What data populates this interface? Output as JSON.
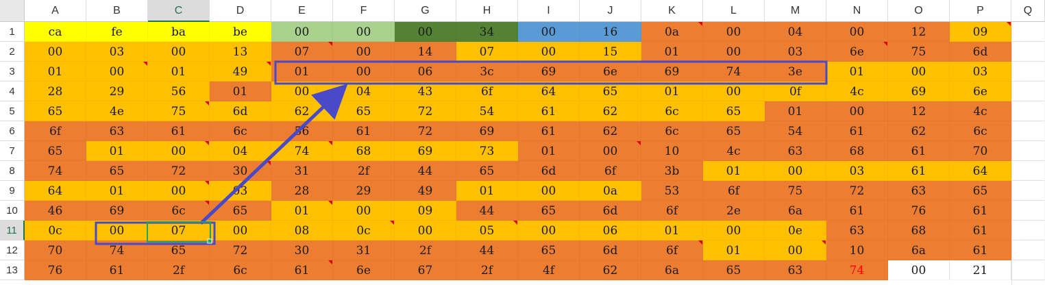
{
  "columns": [
    "A",
    "B",
    "C",
    "D",
    "E",
    "F",
    "G",
    "H",
    "I",
    "J",
    "K",
    "L",
    "M",
    "N",
    "O",
    "P",
    "Q"
  ],
  "rows": [
    "1",
    "2",
    "3",
    "4",
    "5",
    "6",
    "7",
    "8",
    "9",
    "10",
    "11",
    "12",
    "13"
  ],
  "active_column": "C",
  "active_row": "11",
  "cells": [
    [
      "ca",
      "fe",
      "ba",
      "be",
      "00",
      "00",
      "00",
      "34",
      "00",
      "16",
      "0a",
      "00",
      "04",
      "00",
      "12",
      "09"
    ],
    [
      "00",
      "03",
      "00",
      "13",
      "07",
      "00",
      "14",
      "07",
      "00",
      "15",
      "01",
      "00",
      "03",
      "6e",
      "75",
      "6d"
    ],
    [
      "01",
      "00",
      "01",
      "49",
      "01",
      "00",
      "06",
      "3c",
      "69",
      "6e",
      "69",
      "74",
      "3e",
      "01",
      "00",
      "03"
    ],
    [
      "28",
      "29",
      "56",
      "01",
      "00",
      "04",
      "43",
      "6f",
      "64",
      "65",
      "01",
      "00",
      "0f",
      "4c",
      "69",
      "6e"
    ],
    [
      "65",
      "4e",
      "75",
      "6d",
      "62",
      "65",
      "72",
      "54",
      "61",
      "62",
      "6c",
      "65",
      "01",
      "00",
      "12",
      "4c"
    ],
    [
      "6f",
      "63",
      "61",
      "6c",
      "56",
      "61",
      "72",
      "69",
      "61",
      "62",
      "6c",
      "65",
      "54",
      "61",
      "62",
      "6c"
    ],
    [
      "65",
      "01",
      "00",
      "04",
      "74",
      "68",
      "69",
      "73",
      "01",
      "00",
      "10",
      "4c",
      "63",
      "68",
      "61",
      "70"
    ],
    [
      "74",
      "65",
      "72",
      "30",
      "31",
      "2f",
      "44",
      "65",
      "6d",
      "6f",
      "3b",
      "01",
      "00",
      "03",
      "61",
      "64"
    ],
    [
      "64",
      "01",
      "00",
      "03",
      "28",
      "29",
      "49",
      "01",
      "00",
      "0a",
      "53",
      "6f",
      "75",
      "72",
      "63",
      "65"
    ],
    [
      "46",
      "69",
      "6c",
      "65",
      "01",
      "00",
      "09",
      "44",
      "65",
      "6d",
      "6f",
      "2e",
      "6a",
      "61",
      "76",
      "61"
    ],
    [
      "0c",
      "00",
      "07",
      "00",
      "08",
      "0c",
      "00",
      "05",
      "00",
      "06",
      "01",
      "00",
      "0e",
      "63",
      "68",
      "61"
    ],
    [
      "70",
      "74",
      "65",
      "72",
      "30",
      "31",
      "2f",
      "44",
      "65",
      "6d",
      "6f",
      "01",
      "00",
      "10",
      "6a",
      "61"
    ],
    [
      "76",
      "61",
      "2f",
      "6c",
      "61",
      "6e",
      "67",
      "2f",
      "4f",
      "62",
      "6a",
      "65",
      "63",
      "74",
      "00",
      "21"
    ]
  ],
  "fills": [
    [
      "Y",
      "Y",
      "Y",
      "Y",
      "LG",
      "LG",
      "DG",
      "DG",
      "B",
      "B",
      "O",
      "O",
      "O",
      "O",
      "O",
      "G"
    ],
    [
      "G",
      "G",
      "G",
      "G",
      "O",
      "O",
      "O",
      "G",
      "G",
      "G",
      "O",
      "O",
      "O",
      "O",
      "O",
      "O"
    ],
    [
      "G",
      "G",
      "G",
      "G",
      "O",
      "O",
      "O",
      "O",
      "O",
      "O",
      "O",
      "O",
      "O",
      "G",
      "G",
      "G"
    ],
    [
      "G",
      "G",
      "G",
      "O",
      "G",
      "G",
      "G",
      "G",
      "G",
      "G",
      "G",
      "G",
      "G",
      "G",
      "G",
      "G"
    ],
    [
      "G",
      "G",
      "G",
      "G",
      "G",
      "G",
      "G",
      "G",
      "G",
      "G",
      "G",
      "G",
      "O",
      "O",
      "O",
      "O"
    ],
    [
      "O",
      "O",
      "O",
      "O",
      "O",
      "O",
      "O",
      "O",
      "O",
      "O",
      "O",
      "O",
      "O",
      "O",
      "O",
      "O"
    ],
    [
      "O",
      "G",
      "G",
      "G",
      "G",
      "G",
      "G",
      "G",
      "O",
      "O",
      "O",
      "O",
      "O",
      "O",
      "O",
      "O"
    ],
    [
      "O",
      "O",
      "O",
      "O",
      "O",
      "O",
      "O",
      "O",
      "O",
      "O",
      "O",
      "G",
      "G",
      "G",
      "G",
      "G"
    ],
    [
      "G",
      "G",
      "G",
      "G",
      "O",
      "O",
      "O",
      "G",
      "G",
      "G",
      "O",
      "O",
      "O",
      "O",
      "O",
      "O"
    ],
    [
      "O",
      "O",
      "O",
      "O",
      "G",
      "G",
      "G",
      "O",
      "O",
      "O",
      "O",
      "O",
      "O",
      "O",
      "O",
      "O"
    ],
    [
      "G",
      "G",
      "G",
      "G",
      "G",
      "G",
      "G",
      "G",
      "G",
      "G",
      "G",
      "G",
      "G",
      "O",
      "O",
      "O"
    ],
    [
      "O",
      "O",
      "O",
      "O",
      "O",
      "O",
      "O",
      "O",
      "O",
      "O",
      "O",
      "G",
      "G",
      "O",
      "O",
      "O"
    ],
    [
      "O",
      "O",
      "O",
      "O",
      "O",
      "O",
      "O",
      "O",
      "O",
      "O",
      "O",
      "O",
      "O",
      "O",
      "W",
      "W"
    ]
  ],
  "fill_colors": {
    "Y": "#ffff00",
    "LG": "#a9d18e",
    "DG": "#548235",
    "B": "#5b9bd5",
    "O": "#ed7d31",
    "G": "#ffc000",
    "W": "#ffffff"
  },
  "highlight_text_color": "#ff0000",
  "highlight_cell": [
    12,
    13
  ],
  "comment_markers": [
    [
      0,
      10
    ],
    [
      0,
      15
    ],
    [
      1,
      4
    ],
    [
      1,
      13
    ],
    [
      2,
      1
    ],
    [
      2,
      3
    ],
    [
      4,
      2
    ],
    [
      6,
      2
    ],
    [
      6,
      4
    ],
    [
      6,
      9
    ],
    [
      7,
      3
    ],
    [
      8,
      2
    ],
    [
      9,
      2
    ],
    [
      9,
      4
    ],
    [
      10,
      5
    ],
    [
      10,
      7
    ],
    [
      11,
      10
    ],
    [
      11,
      12
    ],
    [
      12,
      4
    ]
  ],
  "annotation_color": "#4a4ac8"
}
